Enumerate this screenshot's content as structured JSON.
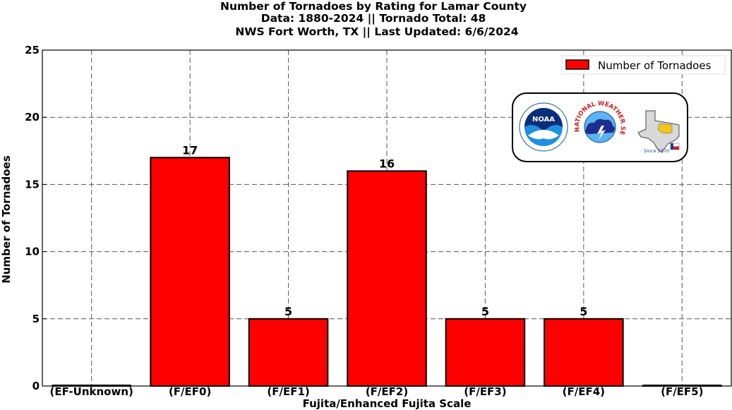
{
  "chart_data": {
    "type": "bar",
    "title_lines": [
      "Number of Tornadoes by Rating for Lamar County",
      "Data: 1880-2024 || Tornado Total: 48",
      "NWS Fort Worth, TX || Last Updated: 6/6/2024"
    ],
    "xlabel": "Fujita/Enhanced Fujita Scale",
    "ylabel": "Number of Tornadoes",
    "categories": [
      "(EF-Unknown)",
      "(F/EF0)",
      "(F/EF1)",
      "(F/EF2)",
      "(F/EF3)",
      "(F/EF4)",
      "(F/EF5)"
    ],
    "series": [
      {
        "name": "Number of Tornadoes",
        "values": [
          0,
          17,
          5,
          16,
          5,
          5,
          0
        ]
      }
    ],
    "data_labels": [
      "",
      "17",
      "5",
      "16",
      "5",
      "5",
      ""
    ],
    "ylim": [
      0,
      25
    ],
    "yticks": [
      0,
      5,
      10,
      15,
      20,
      25
    ],
    "grid": true,
    "legend_position": "top-right",
    "bar_color": "#ff0000",
    "edge_color": "#000000"
  },
  "logos": {
    "noara_text": "NOAA",
    "nws_text": "NATIONAL WEATHER SERVICE",
    "since_text": "Since 1870"
  }
}
